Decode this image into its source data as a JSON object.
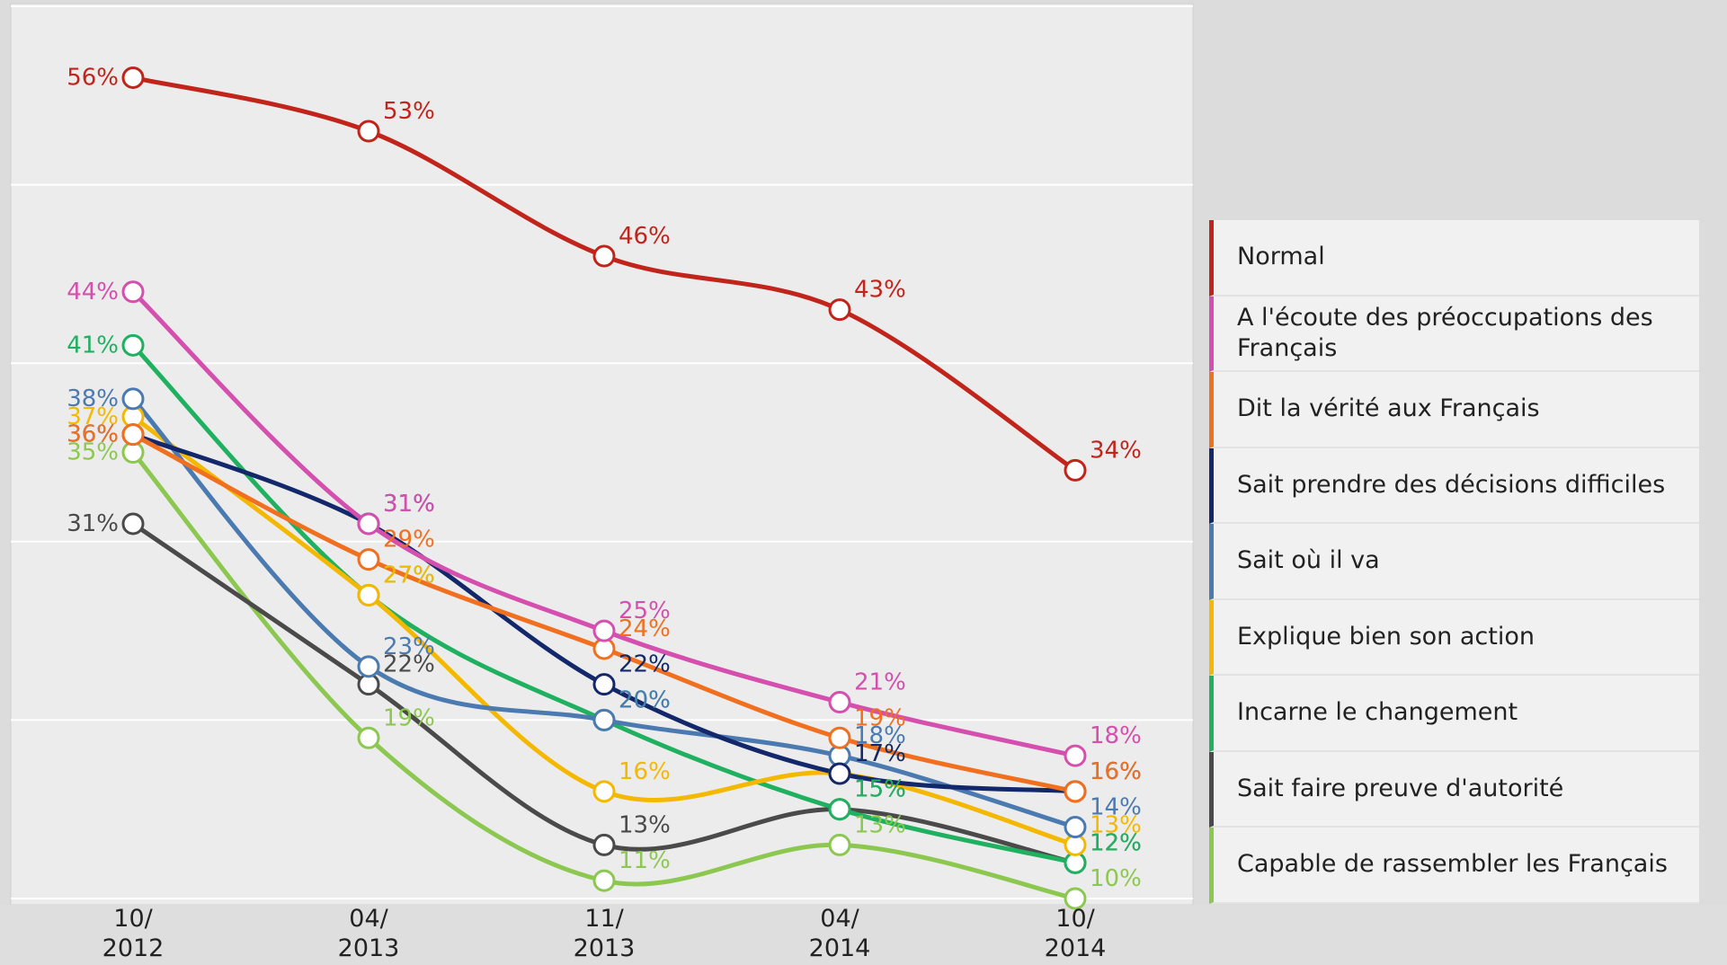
{
  "chart_data": {
    "type": "line",
    "categories": [
      "10/\n2012",
      "04/\n2013",
      "11/\n2013",
      "04/\n2014",
      "10/\n2014"
    ],
    "ylim": [
      10,
      60
    ],
    "yticks": [
      10,
      20,
      30,
      40,
      50,
      60
    ],
    "grid": true,
    "legend": "right",
    "series": [
      {
        "name": "Normal",
        "color": "#c0241b",
        "values": [
          56,
          53,
          46,
          43,
          34
        ],
        "value_labels": [
          "56%",
          "53%",
          "46%",
          "43%",
          "34%"
        ]
      },
      {
        "name": "A l'écoute des préoccupations des Français",
        "color": "#d44fae",
        "values": [
          44,
          31,
          25,
          21,
          18
        ],
        "value_labels": [
          "44%",
          "31%",
          "25%",
          "21%",
          "18%"
        ]
      },
      {
        "name": "Dit la vérité aux Français",
        "color": "#f07020",
        "values": [
          36,
          29,
          24,
          19,
          16
        ],
        "value_labels": [
          "36%",
          "29%",
          "24%",
          "19%",
          "16%"
        ]
      },
      {
        "name": "Sait prendre des décisions difficiles",
        "color": "#13286b",
        "values": [
          36,
          31,
          22,
          17,
          16
        ],
        "value_labels": [
          "36%",
          "31%",
          "22%",
          "17%",
          "16%"
        ]
      },
      {
        "name": "Sait où il va",
        "color": "#4a7ab0",
        "values": [
          38,
          23,
          20,
          18,
          14
        ],
        "value_labels": [
          "38%",
          "23%",
          "20%",
          "18%",
          "14%"
        ]
      },
      {
        "name": "Explique bien son action",
        "color": "#f5b800",
        "values": [
          37,
          27,
          16,
          17,
          13
        ],
        "value_labels": [
          "37%",
          "27%",
          "16%",
          "17%",
          "13%"
        ]
      },
      {
        "name": "Incarne le changement",
        "color": "#1fb060",
        "values": [
          41,
          27,
          20,
          15,
          12
        ],
        "value_labels": [
          "41%",
          "27%",
          "20%",
          "15%",
          "12%"
        ]
      },
      {
        "name": "Sait faire preuve d'autorité",
        "color": "#4a4a4a",
        "values": [
          31,
          22,
          13,
          15,
          12
        ],
        "value_labels": [
          "31%",
          "22%",
          "13%",
          "15%",
          "12%"
        ]
      },
      {
        "name": "Capable de rassembler les Français",
        "color": "#8cc850",
        "values": [
          35,
          19,
          11,
          13,
          10
        ],
        "value_labels": [
          "35%",
          "19%",
          "11%",
          "13%",
          "10%"
        ]
      }
    ]
  }
}
